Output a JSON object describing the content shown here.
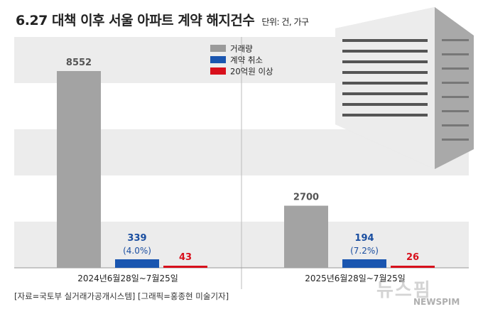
{
  "header": {
    "title": "6.27 대책 이후 서울 아파트 계약 해지건수",
    "unit": "단위: 건, 가구"
  },
  "footer": {
    "source": "[자료=국토부 실거래가공개시스템] [그래픽=홍종현 미술기자]"
  },
  "watermark": {
    "text": "뉴스핌",
    "sub": "NEWSPIM"
  },
  "chart_data": {
    "type": "bar",
    "title": "6.27 대책 이후 서울 아파트 계약 해지건수",
    "xlabel": "",
    "ylabel": "",
    "categories": [
      "2024년6월28일~7월25일",
      "2025년6월28일~7월25일"
    ],
    "series": [
      {
        "name": "거래량",
        "values": [
          8552,
          2700
        ],
        "color": "#999999"
      },
      {
        "name": "계약 취소",
        "values": [
          339,
          194
        ],
        "color": "#1a56b0",
        "pct_labels": [
          "(4.0%)",
          "(7.2%)"
        ]
      },
      {
        "name": "20억원 이상",
        "values": [
          43,
          26
        ],
        "color": "#d8101c"
      }
    ],
    "legend": "top-right",
    "grid": "alternating bands"
  }
}
